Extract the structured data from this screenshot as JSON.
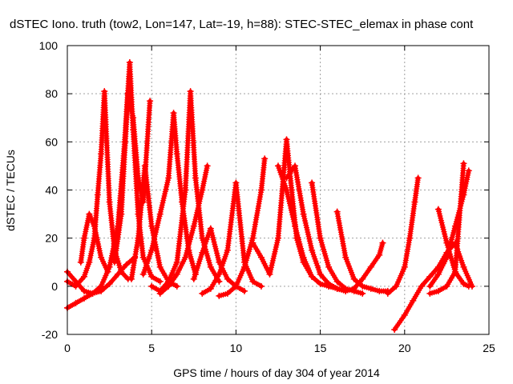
{
  "chart_data": {
    "type": "scatter",
    "title": "dSTEC Iono. truth (tow2, Lon=147, Lat=-19, h=88): STEC-STEC_elemax in phase cont",
    "xlabel": "GPS time / hours of day 304 of year 2014",
    "ylabel": "dSTEC  / TECUs",
    "xlim": [
      0,
      25
    ],
    "ylim": [
      -20,
      100
    ],
    "xticks": [
      0,
      5,
      10,
      15,
      20,
      25
    ],
    "yticks": [
      -20,
      0,
      20,
      40,
      60,
      80,
      100
    ],
    "grid": true,
    "marker": "plus",
    "colors": {
      "series": "#ff0000",
      "grid": "#a0a0a0",
      "axes": "#000000"
    },
    "series": [
      {
        "x": [
          0.0,
          0.5,
          1.0,
          1.3,
          1.6,
          1.8,
          2.0,
          2.2,
          2.5,
          2.8,
          3.2,
          3.6
        ],
        "y": [
          2,
          0,
          4,
          10,
          20,
          38,
          55,
          81,
          35,
          15,
          6,
          3
        ]
      },
      {
        "x": [
          0.8,
          1.0,
          1.3,
          1.6,
          2.0,
          2.4
        ],
        "y": [
          10,
          20,
          30,
          25,
          12,
          6
        ]
      },
      {
        "x": [
          0.0,
          0.5,
          1.0,
          1.5,
          2.0,
          2.5,
          3.0,
          3.4,
          3.7,
          3.9,
          4.2,
          4.5,
          5.0,
          5.5
        ],
        "y": [
          6,
          2,
          -2,
          -3,
          0,
          8,
          25,
          60,
          93,
          65,
          30,
          12,
          4,
          2
        ]
      },
      {
        "x": [
          2.8,
          3.2,
          3.6,
          3.9,
          4.2,
          4.5,
          4.9
        ],
        "y": [
          10,
          30,
          80,
          70,
          45,
          35,
          77
        ]
      },
      {
        "x": [
          3.8,
          4.2,
          4.6,
          5.0,
          5.5,
          6.0,
          6.5
        ],
        "y": [
          3,
          20,
          50,
          25,
          8,
          2,
          0
        ]
      },
      {
        "x": [
          0.0,
          0.5,
          1.0,
          1.5,
          2.0,
          2.5,
          3.0,
          3.5,
          4.0
        ],
        "y": [
          -9,
          -7,
          -5,
          -3,
          -2,
          1,
          5,
          9,
          12
        ]
      },
      {
        "x": [
          4.5,
          5.0,
          5.5,
          6.0,
          6.3,
          6.5,
          6.8,
          7.2,
          7.6
        ],
        "y": [
          5,
          15,
          30,
          45,
          72,
          55,
          35,
          15,
          5
        ]
      },
      {
        "x": [
          5.0,
          5.5,
          6.0,
          6.5,
          7.0,
          7.3,
          7.6,
          8.0,
          8.5,
          9.0
        ],
        "y": [
          0,
          -2,
          2,
          10,
          40,
          81,
          45,
          20,
          8,
          2
        ]
      },
      {
        "x": [
          5.5,
          6.0,
          6.5,
          7.0,
          7.5,
          8.0,
          8.3
        ],
        "y": [
          -3,
          0,
          5,
          12,
          25,
          40,
          50
        ]
      },
      {
        "x": [
          7.5,
          8.0,
          8.5,
          9.0,
          9.5,
          10.0,
          10.5
        ],
        "y": [
          3,
          14,
          24,
          10,
          3,
          0,
          -2
        ]
      },
      {
        "x": [
          8.0,
          8.5,
          9.0,
          9.5,
          10.0,
          10.5,
          11.0,
          11.5
        ],
        "y": [
          -3,
          -1,
          5,
          15,
          43,
          10,
          2,
          0
        ]
      },
      {
        "x": [
          9.0,
          9.5,
          10.0,
          10.5,
          11.0,
          11.5,
          11.7
        ],
        "y": [
          -4,
          -3,
          0,
          8,
          20,
          40,
          53
        ]
      },
      {
        "x": [
          11.0,
          11.5,
          12.0,
          12.5,
          13.0,
          13.3,
          13.6,
          14.0,
          14.5
        ],
        "y": [
          18,
          12,
          5,
          20,
          61,
          40,
          20,
          10,
          4
        ]
      },
      {
        "x": [
          12.5,
          13.0,
          13.5,
          14.0,
          14.5,
          15.0,
          15.5
        ],
        "y": [
          50,
          40,
          25,
          12,
          4,
          1,
          0
        ]
      },
      {
        "x": [
          13.0,
          13.5,
          14.0,
          14.5,
          15.0,
          15.5,
          16.0,
          16.5
        ],
        "y": [
          45,
          50,
          30,
          15,
          5,
          1,
          -1,
          -2
        ]
      },
      {
        "x": [
          14.5,
          15.0,
          15.5,
          16.0,
          16.5,
          17.0,
          17.5
        ],
        "y": [
          43,
          20,
          8,
          2,
          -1,
          -2,
          -3
        ]
      },
      {
        "x": [
          16.0,
          16.5,
          17.0,
          17.5,
          18.0,
          18.5,
          19.0
        ],
        "y": [
          31,
          12,
          3,
          0,
          -1,
          -2,
          -2
        ]
      },
      {
        "x": [
          15.5,
          16.0,
          16.5,
          17.0,
          17.5,
          18.0,
          18.5,
          18.7
        ],
        "y": [
          0,
          -1,
          -2,
          -1,
          3,
          8,
          13,
          18
        ]
      },
      {
        "x": [
          19.0,
          19.5,
          20.0,
          20.3,
          20.6,
          20.8
        ],
        "y": [
          -3,
          0,
          8,
          20,
          35,
          45
        ]
      },
      {
        "x": [
          19.4,
          20.0,
          20.5,
          21.0,
          21.5,
          22.0,
          22.5,
          23.0,
          23.5,
          24.0
        ],
        "y": [
          -18,
          -12,
          -6,
          0,
          4,
          8,
          14,
          18,
          8,
          0
        ]
      },
      {
        "x": [
          21.5,
          22.0,
          22.5,
          23.0,
          23.5,
          23.8
        ],
        "y": [
          0,
          5,
          12,
          25,
          38,
          48
        ]
      },
      {
        "x": [
          22.0,
          22.5,
          23.0,
          23.5,
          23.8
        ],
        "y": [
          32,
          18,
          6,
          1,
          0
        ]
      },
      {
        "x": [
          21.5,
          22.0,
          22.5,
          23.0,
          23.5
        ],
        "y": [
          -3,
          -2,
          0,
          6,
          51
        ]
      }
    ]
  }
}
